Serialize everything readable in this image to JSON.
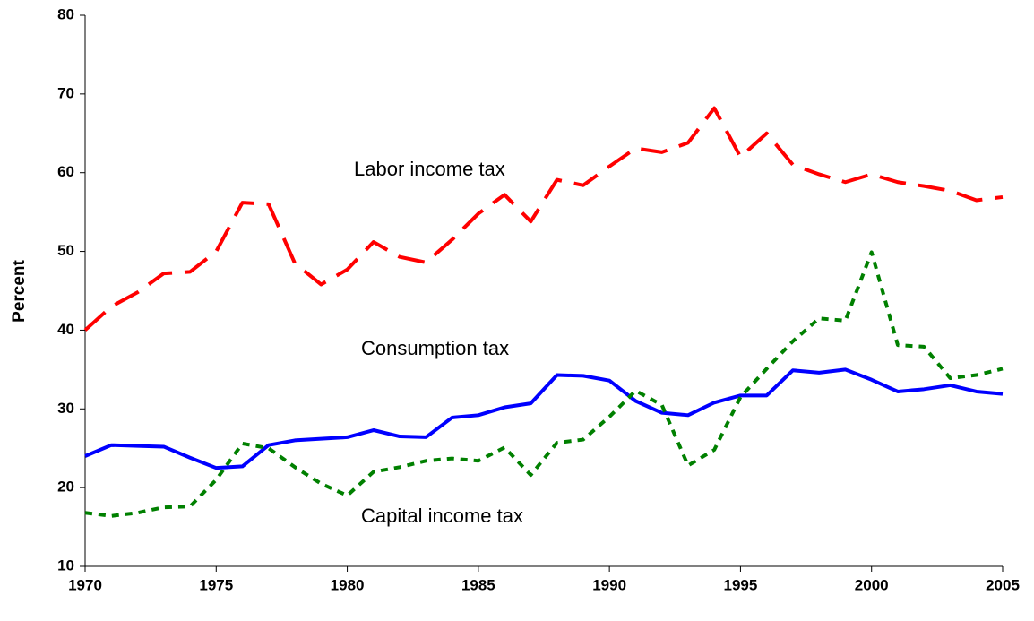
{
  "chart_data": {
    "type": "line",
    "y_label": "Percent",
    "x": [
      1970,
      1971,
      1972,
      1973,
      1974,
      1975,
      1976,
      1977,
      1978,
      1979,
      1980,
      1981,
      1982,
      1983,
      1984,
      1985,
      1986,
      1987,
      1988,
      1989,
      1990,
      1991,
      1992,
      1993,
      1994,
      1995,
      1996,
      1997,
      1998,
      1999,
      2000,
      2001,
      2002,
      2003,
      2004,
      2005
    ],
    "series": [
      {
        "name": "Labor income tax",
        "color": "#ff0000",
        "style": "dashed",
        "values": [
          40,
          43,
          44.8,
          47.2,
          47.4,
          50,
          56.2,
          56,
          48.5,
          45.8,
          47.7,
          51.2,
          49.3,
          48.6,
          51.5,
          54.8,
          57.2,
          53.8,
          59.1,
          58.4,
          60.8,
          63.1,
          62.6,
          63.8,
          68.2,
          62,
          65,
          61,
          59.8,
          58.8,
          59.8,
          58.8,
          58.3,
          57.7,
          56.5,
          56.9
        ]
      },
      {
        "name": "Consumption tax",
        "color": "#0000ff",
        "style": "solid",
        "values": [
          24,
          25.4,
          25.3,
          25.2,
          23.8,
          22.5,
          22.7,
          25.4,
          26,
          26.2,
          26.4,
          27.3,
          26.5,
          26.4,
          28.9,
          29.2,
          30.2,
          30.7,
          34.3,
          34.2,
          33.6,
          31,
          29.5,
          29.2,
          30.8,
          31.7,
          31.7,
          34.9,
          34.6,
          35,
          33.7,
          32.2,
          32.5,
          33,
          32.2,
          31.9
        ]
      },
      {
        "name": "Capital income tax",
        "color": "#008000",
        "style": "dotted",
        "values": [
          16.8,
          16.4,
          16.8,
          17.5,
          17.6,
          21,
          25.6,
          25,
          22.6,
          20.5,
          19,
          22,
          22.6,
          23.4,
          23.7,
          23.4,
          25.1,
          21.6,
          25.7,
          26.1,
          29,
          32.3,
          30.5,
          22.8,
          24.8,
          31.5,
          35.1,
          38.6,
          41.5,
          41.2,
          49.9,
          38.1,
          37.9,
          33.9,
          34.3,
          35.1
        ]
      }
    ],
    "xlim": [
      1970,
      2005
    ],
    "xticks": [
      1970,
      1975,
      1980,
      1985,
      1990,
      1995,
      2000,
      2005
    ],
    "ylim": [
      10,
      80
    ],
    "yticks": [
      10,
      20,
      30,
      40,
      50,
      60,
      70,
      80
    ],
    "grid": false
  }
}
